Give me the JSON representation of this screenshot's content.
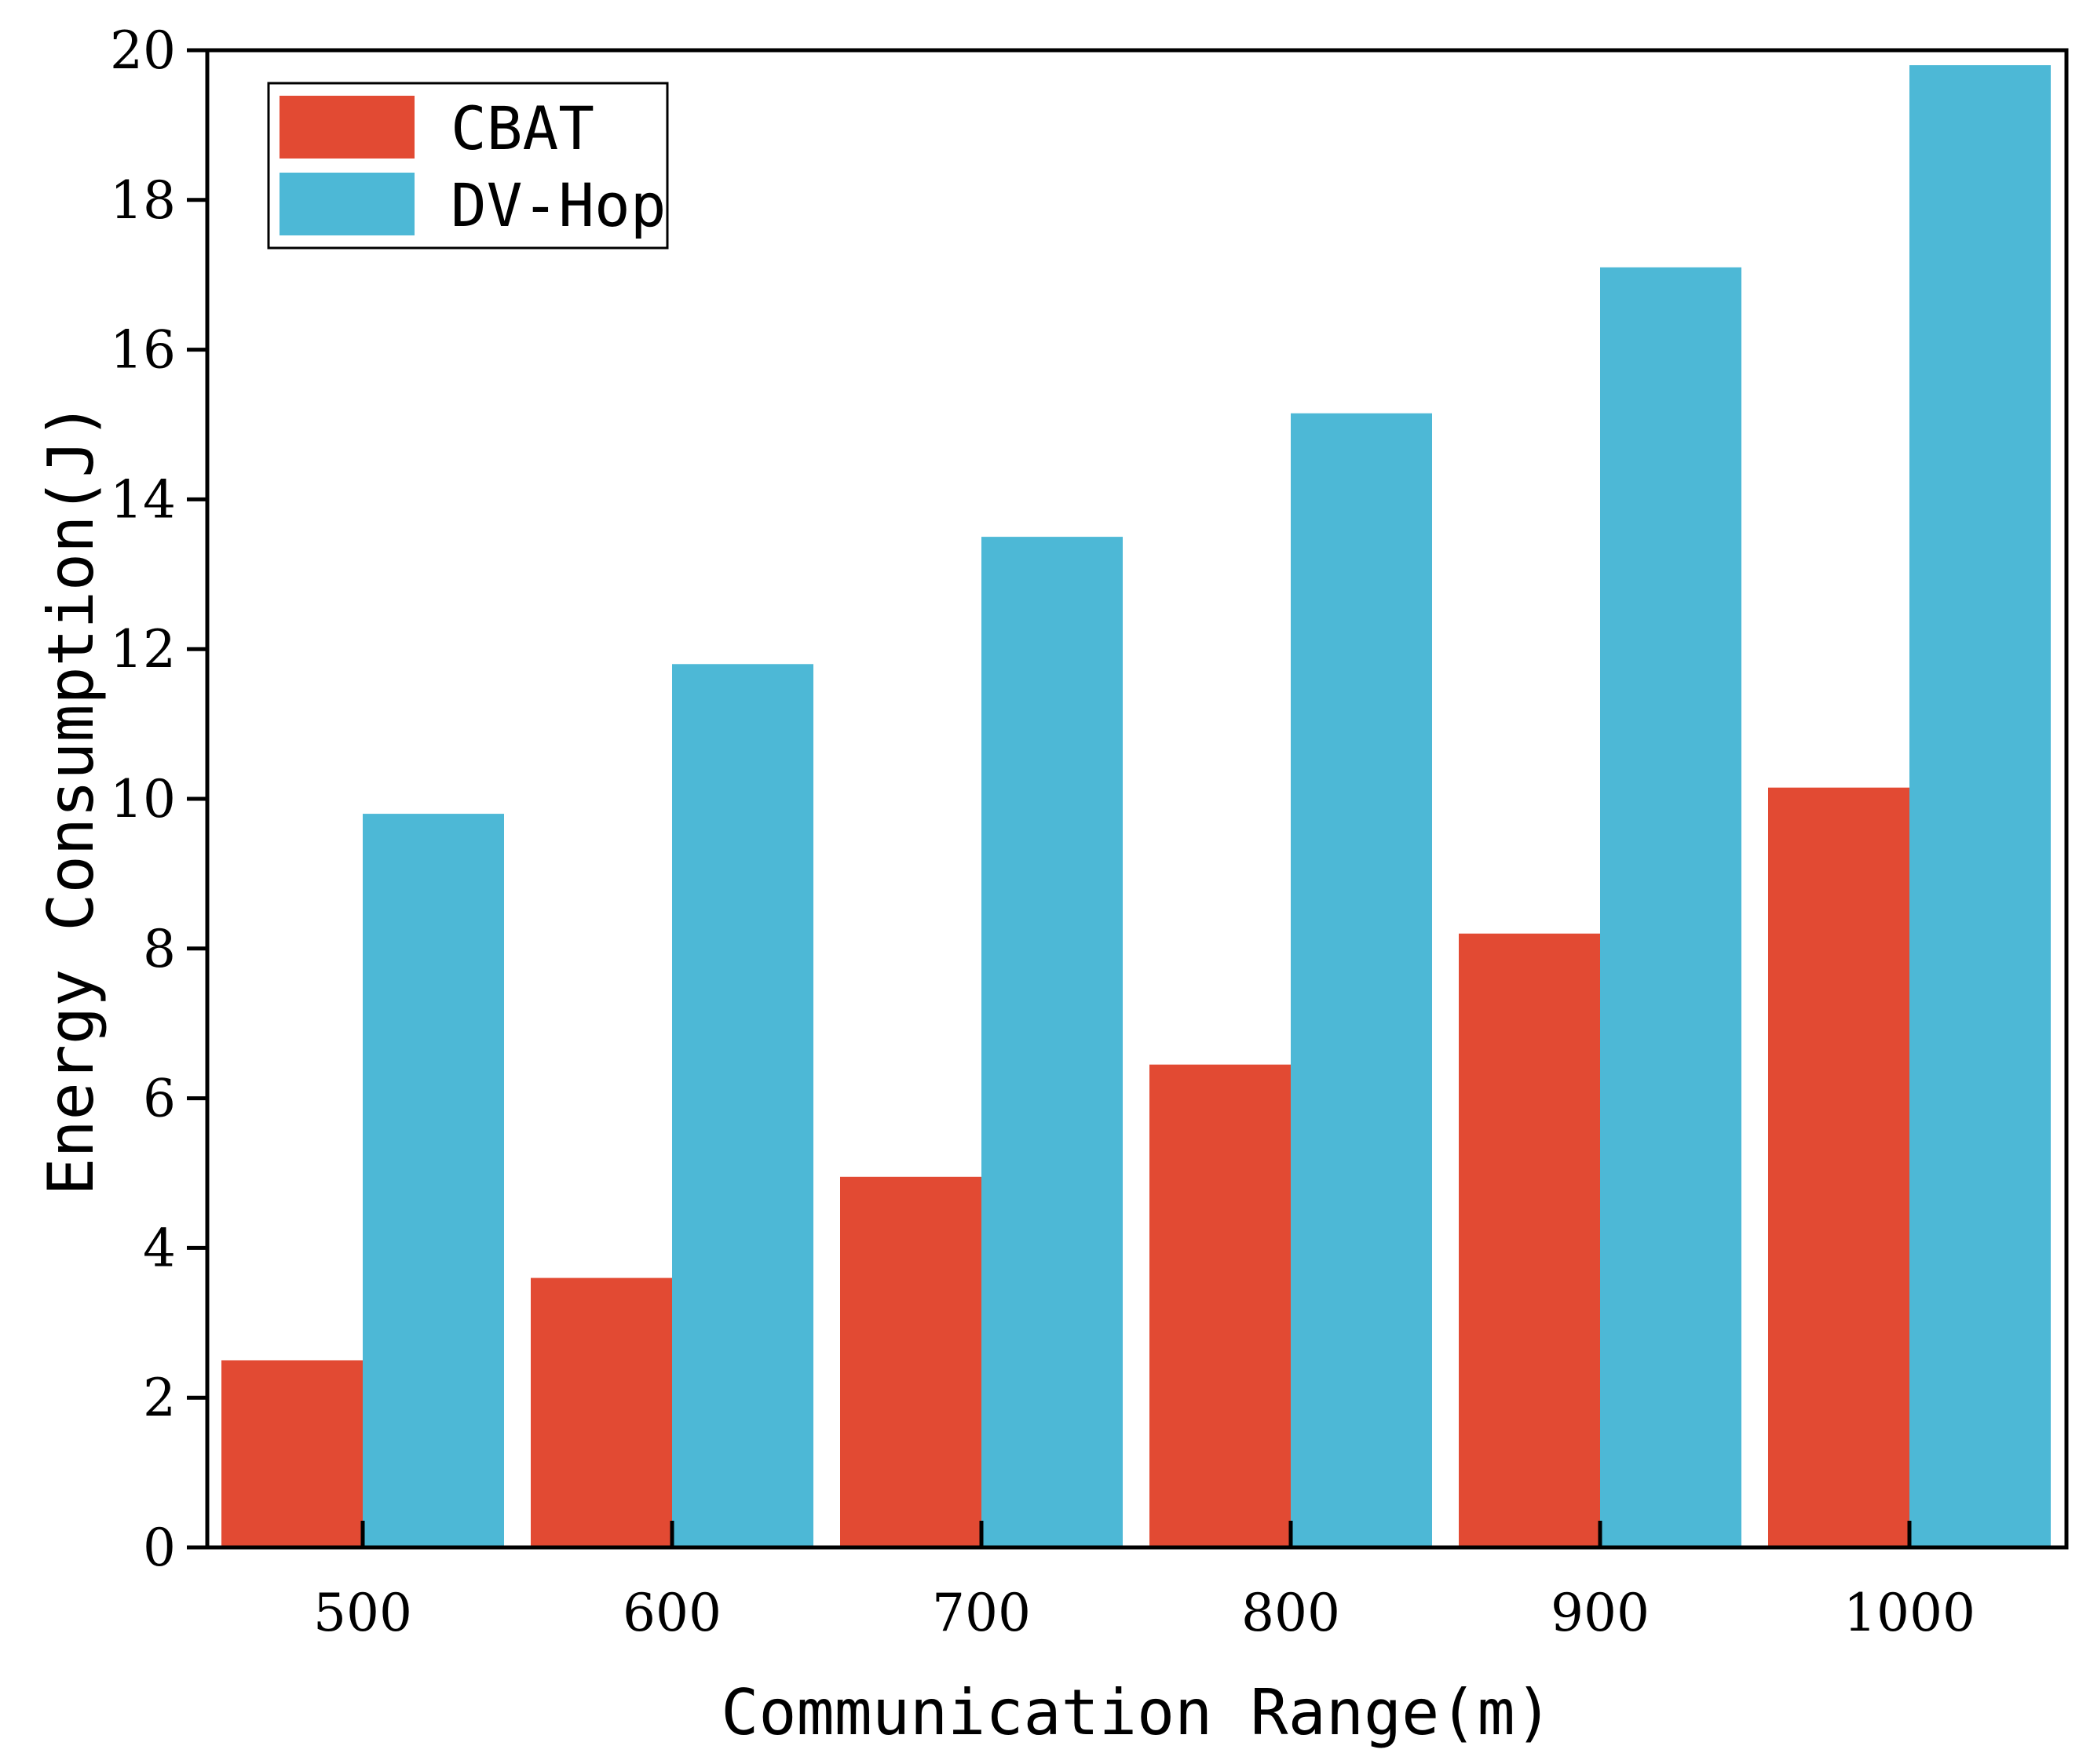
{
  "chart_data": {
    "type": "bar",
    "categories": [
      "500",
      "600",
      "700",
      "800",
      "900",
      "1000"
    ],
    "series": [
      {
        "name": "CBAT",
        "color": "#e24a33",
        "values": [
          2.5,
          3.6,
          4.95,
          6.45,
          8.2,
          10.15
        ]
      },
      {
        "name": "DV-Hop",
        "color": "#4db8d6",
        "values": [
          9.8,
          11.8,
          13.5,
          15.15,
          17.1,
          19.8
        ]
      }
    ],
    "title": "",
    "xlabel": "Communication Range(m)",
    "ylabel": "Energy Consumption(J)",
    "ylim": [
      0,
      20
    ],
    "yticks": [
      "0",
      "2",
      "4",
      "6",
      "8",
      "10",
      "12",
      "14",
      "16",
      "18",
      "20"
    ],
    "grid": false,
    "legend_position": "top-left"
  }
}
